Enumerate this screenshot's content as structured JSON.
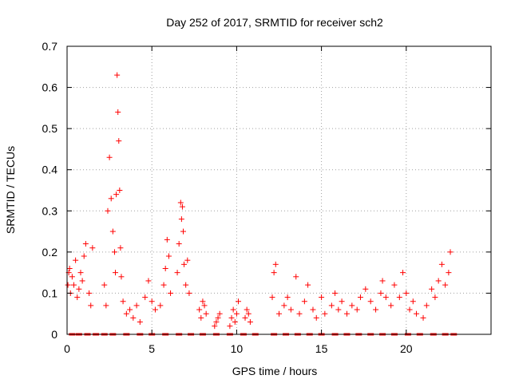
{
  "chart_data": {
    "type": "scatter",
    "title": "Day 252 of 2017, SRMTID for receiver sch2",
    "xlabel": "GPS time / hours",
    "ylabel": "SRMTID / TECUs",
    "xlim": [
      0,
      25
    ],
    "ylim": [
      0,
      0.7
    ],
    "xticks": [
      "0",
      "5",
      "10",
      "15",
      "20"
    ],
    "yticks": [
      "0",
      "0.1",
      "0.2",
      "0.3",
      "0.4",
      "0.5",
      "0.6",
      "0.7"
    ],
    "grid": true,
    "marker": "+",
    "color": "#ff0000",
    "series": [
      {
        "name": "SRMTID",
        "x": [
          0.05,
          0.1,
          0.15,
          0.2,
          0.3,
          0.4,
          0.5,
          0.6,
          0.7,
          0.8,
          0.9,
          1.0,
          1.1,
          1.3,
          1.4,
          1.5,
          2.2,
          2.3,
          2.4,
          2.5,
          2.6,
          2.7,
          2.8,
          2.85,
          2.9,
          2.95,
          3.0,
          3.05,
          3.1,
          3.15,
          3.2,
          3.3,
          3.5,
          3.7,
          3.9,
          4.1,
          4.3,
          4.6,
          4.8,
          5.0,
          5.2,
          5.5,
          5.7,
          5.8,
          5.9,
          6.0,
          6.1,
          6.5,
          6.6,
          6.7,
          6.75,
          6.8,
          6.85,
          6.9,
          7.0,
          7.1,
          7.2,
          7.8,
          7.9,
          8.0,
          8.1,
          8.2,
          8.7,
          8.8,
          8.9,
          9.0,
          9.6,
          9.7,
          9.8,
          9.9,
          10.0,
          10.1,
          10.5,
          10.6,
          10.7,
          10.8,
          12.1,
          12.2,
          12.3,
          12.5,
          12.8,
          13.0,
          13.2,
          13.5,
          13.7,
          14.0,
          14.2,
          14.5,
          14.7,
          15.0,
          15.2,
          15.6,
          15.8,
          16.0,
          16.2,
          16.5,
          16.8,
          17.1,
          17.3,
          17.6,
          17.9,
          18.2,
          18.5,
          18.6,
          18.8,
          19.1,
          19.3,
          19.6,
          19.8,
          20.0,
          20.2,
          20.4,
          20.6,
          21.0,
          21.2,
          21.5,
          21.7,
          21.9,
          22.1,
          22.3,
          22.5,
          22.6
        ],
        "y": [
          0.12,
          0.15,
          0.16,
          0.1,
          0.14,
          0.12,
          0.18,
          0.09,
          0.11,
          0.15,
          0.13,
          0.19,
          0.22,
          0.1,
          0.07,
          0.21,
          0.12,
          0.07,
          0.3,
          0.43,
          0.33,
          0.25,
          0.2,
          0.15,
          0.34,
          0.63,
          0.54,
          0.47,
          0.35,
          0.21,
          0.14,
          0.08,
          0.05,
          0.06,
          0.04,
          0.07,
          0.03,
          0.09,
          0.13,
          0.08,
          0.06,
          0.07,
          0.12,
          0.16,
          0.23,
          0.19,
          0.1,
          0.15,
          0.22,
          0.32,
          0.28,
          0.31,
          0.25,
          0.17,
          0.12,
          0.18,
          0.1,
          0.06,
          0.04,
          0.08,
          0.07,
          0.05,
          0.02,
          0.03,
          0.04,
          0.05,
          0.02,
          0.04,
          0.06,
          0.03,
          0.05,
          0.08,
          0.04,
          0.06,
          0.05,
          0.03,
          0.09,
          0.15,
          0.17,
          0.05,
          0.07,
          0.09,
          0.06,
          0.14,
          0.05,
          0.08,
          0.12,
          0.06,
          0.04,
          0.09,
          0.05,
          0.07,
          0.1,
          0.06,
          0.08,
          0.05,
          0.07,
          0.06,
          0.09,
          0.11,
          0.08,
          0.06,
          0.1,
          0.13,
          0.09,
          0.07,
          0.12,
          0.09,
          0.15,
          0.1,
          0.06,
          0.08,
          0.05,
          0.04,
          0.07,
          0.11,
          0.09,
          0.13,
          0.17,
          0.12,
          0.15,
          0.2
        ],
        "zero_x": [
          0.3,
          0.7,
          1.2,
          1.7,
          2.2,
          2.7,
          3.5,
          4.3,
          5.0,
          5.8,
          6.6,
          7.3,
          8.0,
          8.8,
          9.6,
          10.4,
          11.1,
          12.2,
          12.9,
          13.6,
          14.3,
          15.0,
          15.8,
          16.5,
          17.2,
          17.9,
          18.6,
          19.3,
          20.1,
          20.8,
          21.6,
          22.3,
          22.8
        ]
      }
    ]
  }
}
